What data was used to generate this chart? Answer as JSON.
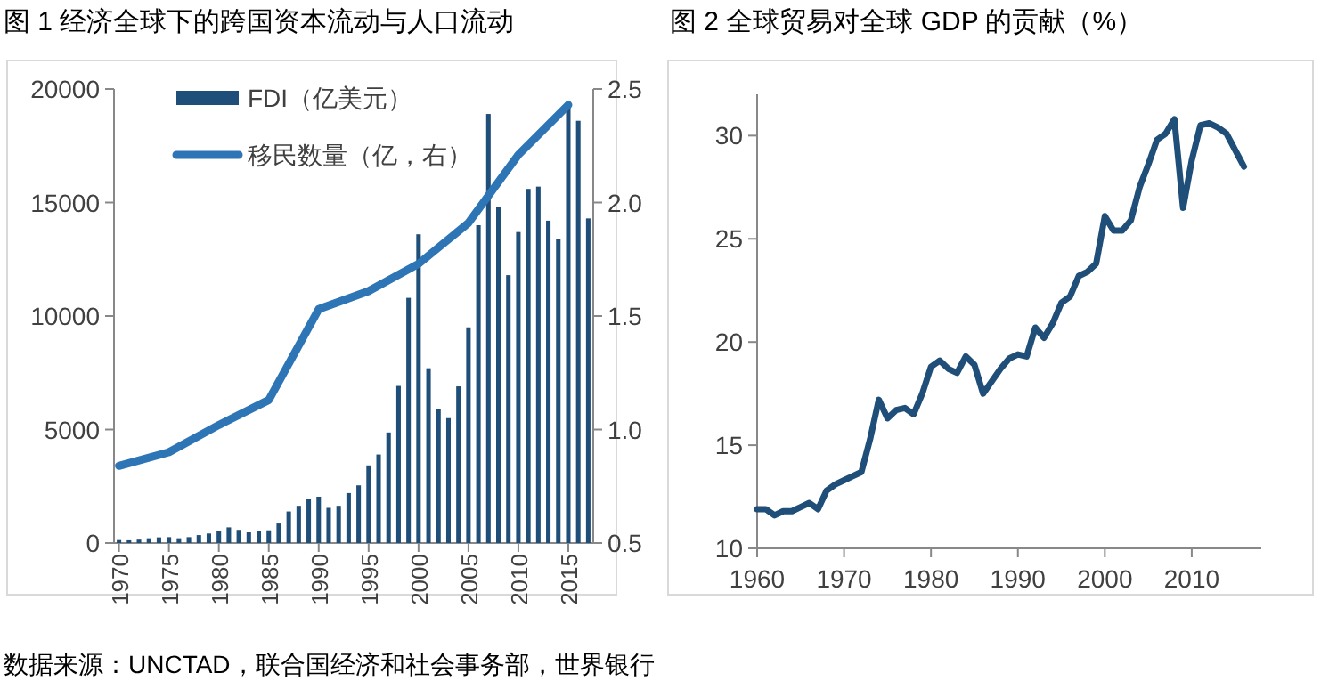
{
  "chart_data": [
    {
      "type": "bar",
      "title": "图 1 经济全球下的跨国资本流动与人口流动",
      "x": [
        1970,
        1971,
        1972,
        1973,
        1974,
        1975,
        1976,
        1977,
        1978,
        1979,
        1980,
        1981,
        1982,
        1983,
        1984,
        1985,
        1986,
        1987,
        1988,
        1989,
        1990,
        1991,
        1992,
        1993,
        1994,
        1995,
        1996,
        1997,
        1998,
        1999,
        2000,
        2001,
        2002,
        2003,
        2004,
        2005,
        2006,
        2007,
        2008,
        2009,
        2010,
        2011,
        2012,
        2013,
        2014,
        2015,
        2016,
        2017
      ],
      "xlim": [
        1969.5,
        2017.5
      ],
      "xticks": [
        1970,
        1975,
        1980,
        1985,
        1990,
        1995,
        2000,
        2005,
        2010,
        2015
      ],
      "series": [
        {
          "name": "FDI（亿美元）",
          "color": "#1f4e79",
          "values": [
            130,
            120,
            150,
            210,
            250,
            260,
            210,
            260,
            350,
            420,
            540,
            690,
            580,
            470,
            540,
            560,
            860,
            1390,
            1640,
            1960,
            2040,
            1550,
            1640,
            2200,
            2540,
            3420,
            3900,
            4870,
            6920,
            10800,
            13600,
            7700,
            5900,
            5500,
            6900,
            9500,
            14000,
            18900,
            14800,
            11800,
            13700,
            15600,
            15700,
            14200,
            13400,
            19200,
            18600,
            14300
          ]
        },
        {
          "name": "移民数量（亿，右）",
          "type": "line",
          "axis": "y2",
          "color": "#2e75b6",
          "x": [
            1970,
            1975,
            1980,
            1985,
            1990,
            1995,
            2000,
            2005,
            2010,
            2015
          ],
          "values": [
            0.84,
            0.9,
            1.02,
            1.13,
            1.53,
            1.61,
            1.73,
            1.91,
            2.21,
            2.43
          ]
        }
      ],
      "ylim": [
        0,
        20000
      ],
      "yticks": [
        0,
        5000,
        10000,
        15000,
        20000
      ],
      "y2lim": [
        0.5,
        2.5
      ],
      "y2ticks": [
        {
          "value": 0.5,
          "label": "0.5"
        },
        {
          "value": 1,
          "label": "1.0"
        },
        {
          "value": 1.5,
          "label": "1.5"
        },
        {
          "value": 2,
          "label": "2.0"
        },
        {
          "value": 2.5,
          "label": "2.5"
        }
      ],
      "legend": "top left",
      "grid": false,
      "annotations": [
        "数据来源：UNCTAD，联合国经济和社会事务部，世界银行"
      ]
    },
    {
      "type": "line",
      "title": "图 2 全球贸易对全球 GDP 的贡献（%）",
      "x": [
        1960,
        1961,
        1962,
        1963,
        1964,
        1965,
        1966,
        1967,
        1968,
        1969,
        1970,
        1971,
        1972,
        1973,
        1974,
        1975,
        1976,
        1977,
        1978,
        1979,
        1980,
        1981,
        1982,
        1983,
        1984,
        1985,
        1986,
        1987,
        1988,
        1989,
        1990,
        1991,
        1992,
        1993,
        1994,
        1995,
        1996,
        1997,
        1998,
        1999,
        2000,
        2001,
        2002,
        2003,
        2004,
        2005,
        2006,
        2007,
        2008,
        2009,
        2010,
        2011,
        2012,
        2013,
        2014,
        2015,
        2016
      ],
      "series": [
        {
          "color": "#1f4e79",
          "values": [
            11.9,
            11.9,
            11.6,
            11.8,
            11.8,
            12.0,
            12.2,
            11.9,
            12.8,
            13.1,
            13.3,
            13.5,
            13.7,
            15.3,
            17.2,
            16.3,
            16.7,
            16.8,
            16.5,
            17.5,
            18.8,
            19.1,
            18.7,
            18.5,
            19.3,
            18.9,
            17.5,
            18.1,
            18.7,
            19.2,
            19.4,
            19.3,
            20.7,
            20.2,
            20.9,
            21.9,
            22.2,
            23.2,
            23.4,
            23.8,
            26.1,
            25.4,
            25.4,
            25.9,
            27.5,
            28.6,
            29.8,
            30.1,
            30.8,
            26.5,
            28.8,
            30.5,
            30.6,
            30.4,
            30.1,
            29.3,
            28.5
          ]
        }
      ],
      "xlim": [
        1960,
        2018
      ],
      "xticks": [
        1960,
        1970,
        1980,
        1990,
        2000,
        2010
      ],
      "ylim": [
        10,
        32
      ],
      "yticks": [
        10,
        15,
        20,
        25,
        30
      ],
      "grid": false
    }
  ]
}
